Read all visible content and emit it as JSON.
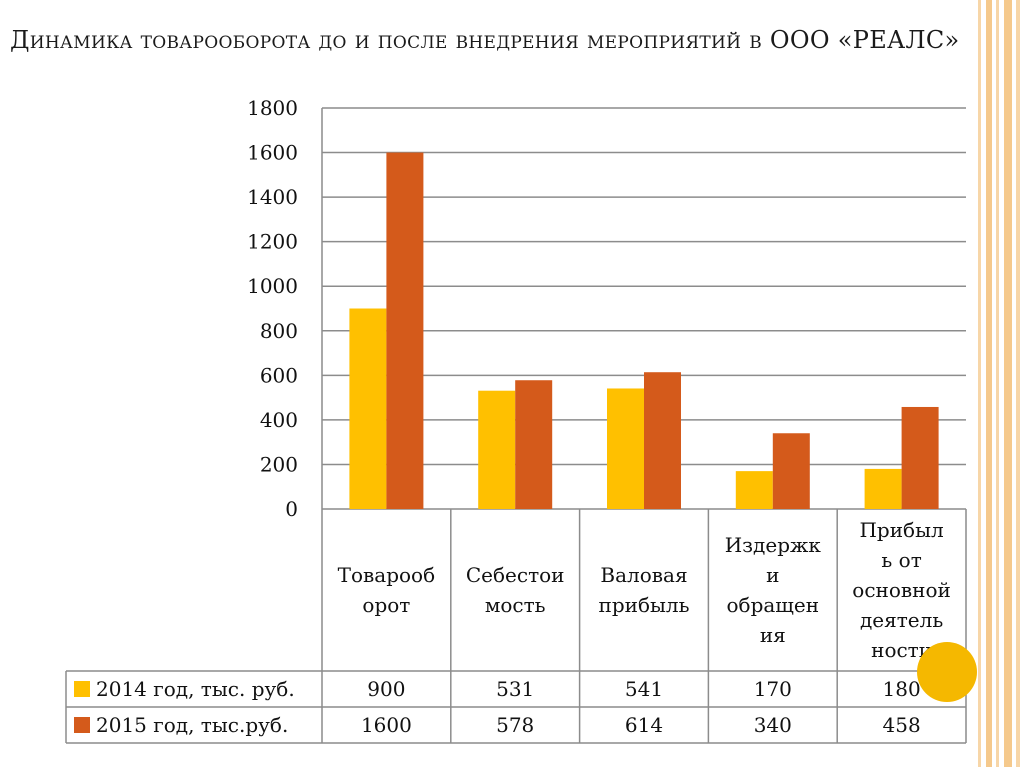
{
  "colors": {
    "series_2014": "#FFC000",
    "series_2015": "#D45A1B",
    "grid": "#8c8c8c",
    "table_border": "#8c8c8c",
    "deco_stripe": "#F5C98C",
    "circle": "#F5B800"
  },
  "chart_data": {
    "type": "bar",
    "title": "Динамика товарооборота  до и после внедрения мероприятий в ООО «РЕАЛС»",
    "xlabel": "",
    "ylabel": "",
    "ylim": [
      0,
      1800
    ],
    "yticks": [
      0,
      200,
      400,
      600,
      800,
      1000,
      1200,
      1400,
      1600,
      1800
    ],
    "grid": true,
    "legend": "data-table-left",
    "categories": [
      [
        "Товарооб",
        "орот"
      ],
      [
        "Себестои",
        "мость"
      ],
      [
        "Валовая",
        "прибыль"
      ],
      [
        "Издержк",
        "и",
        "обращен",
        "ия"
      ],
      [
        "Прибыл",
        "ь от",
        "основной",
        "деятель",
        "ности"
      ]
    ],
    "series": [
      {
        "name": "2014 год, тыс. руб.",
        "values": [
          900,
          531,
          541,
          170,
          180
        ],
        "color": "#FFC000"
      },
      {
        "name": "2015 год, тыс.руб.",
        "values": [
          1600,
          578,
          614,
          340,
          458
        ],
        "color": "#D45A1B"
      }
    ]
  }
}
